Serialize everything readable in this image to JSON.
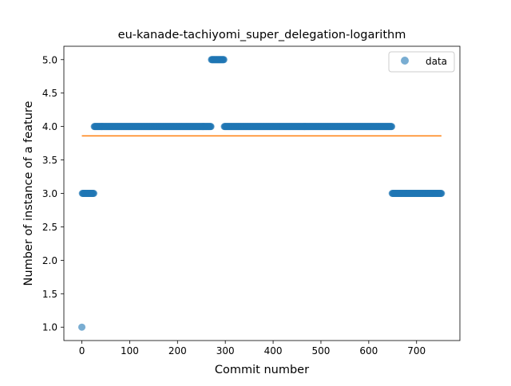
{
  "chart_data": {
    "type": "scatter",
    "title": "eu-kanade-tachiyomi_super_delegation-logarithm",
    "xlabel": "Commit number",
    "ylabel": "Number of instance of a feature",
    "xlim": [
      -37.6,
      790.6
    ],
    "ylim": [
      0.8,
      5.2
    ],
    "x_ticks": [
      "0",
      "100",
      "200",
      "300",
      "400",
      "500",
      "600",
      "700"
    ],
    "x_tick_values": [
      0,
      100,
      200,
      300,
      400,
      500,
      600,
      700
    ],
    "y_ticks": [
      "1.0",
      "1.5",
      "2.0",
      "2.5",
      "3.0",
      "3.5",
      "4.0",
      "4.5",
      "5.0"
    ],
    "y_tick_values": [
      1.0,
      1.5,
      2.0,
      2.5,
      3.0,
      3.5,
      4.0,
      4.5,
      5.0
    ],
    "grid": false,
    "legend": {
      "position": "top-right",
      "entries": [
        "data"
      ]
    },
    "colors": {
      "data": "#1f77b4",
      "trend": "#ff7f0e"
    },
    "series": [
      {
        "name": "data",
        "kind": "scatter",
        "segments": [
          {
            "x_start": 0,
            "x_end": 0,
            "y": 1.0
          },
          {
            "x_start": 1,
            "x_end": 25,
            "y": 3.0
          },
          {
            "x_start": 26,
            "x_end": 270,
            "y": 4.0
          },
          {
            "x_start": 271,
            "x_end": 297,
            "y": 5.0
          },
          {
            "x_start": 298,
            "x_end": 648,
            "y": 4.0
          },
          {
            "x_start": 649,
            "x_end": 752,
            "y": 3.0
          }
        ]
      },
      {
        "kind": "line",
        "x": [
          0,
          752
        ],
        "y": [
          3.86,
          3.86
        ]
      }
    ]
  }
}
